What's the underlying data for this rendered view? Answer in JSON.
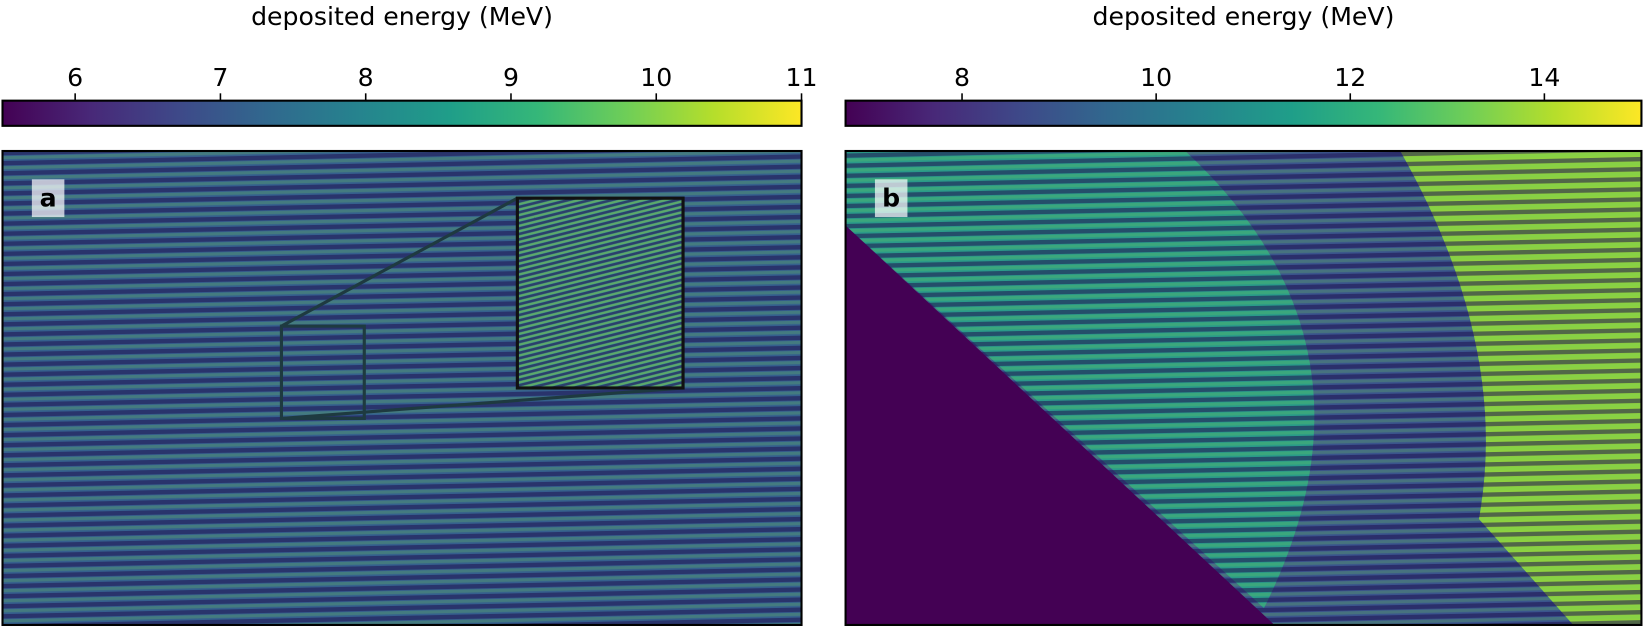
{
  "chart_data": [
    {
      "type": "heatmap",
      "panel_label": "a",
      "colorbar_label": "deposited energy (MeV)",
      "cmap": "viridis",
      "clim": [
        5.5,
        11
      ],
      "cticks": [
        6,
        7,
        8,
        9,
        10,
        11
      ]
    },
    {
      "type": "heatmap",
      "panel_label": "b",
      "colorbar_label": "deposited energy (MeV)",
      "cmap": "viridis",
      "clim": [
        6.8,
        15
      ],
      "cticks": [
        8,
        10,
        12,
        14
      ]
    }
  ]
}
